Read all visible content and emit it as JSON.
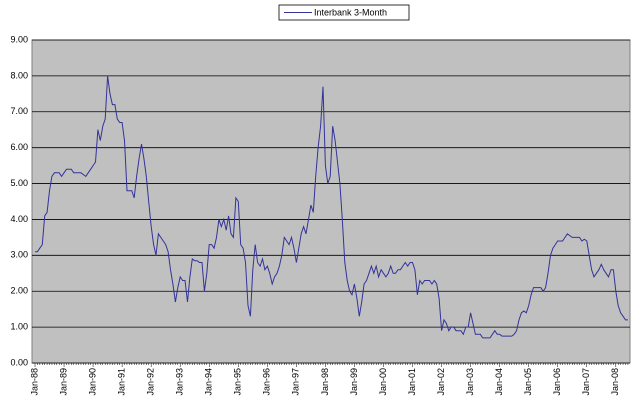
{
  "chart_data": {
    "type": "line",
    "categories": [
      "Jan-88",
      null,
      null,
      null,
      null,
      null,
      null,
      null,
      null,
      null,
      null,
      null,
      "Jan-89",
      null,
      null,
      null,
      null,
      null,
      null,
      null,
      null,
      null,
      null,
      null,
      "Jan-90",
      null,
      null,
      null,
      null,
      null,
      null,
      null,
      null,
      null,
      null,
      null,
      "Jan-91",
      null,
      null,
      null,
      null,
      null,
      null,
      null,
      null,
      null,
      null,
      null,
      "Jan-92",
      null,
      null,
      null,
      null,
      null,
      null,
      null,
      null,
      null,
      null,
      null,
      "Jan-93",
      null,
      null,
      null,
      null,
      null,
      null,
      null,
      null,
      null,
      null,
      null,
      "Jan-94",
      null,
      null,
      null,
      null,
      null,
      null,
      null,
      null,
      null,
      null,
      null,
      "Jan-95",
      null,
      null,
      null,
      null,
      null,
      null,
      null,
      null,
      null,
      null,
      null,
      "Jan-96",
      null,
      null,
      null,
      null,
      null,
      null,
      null,
      null,
      null,
      null,
      null,
      "Jan-97",
      null,
      null,
      null,
      null,
      null,
      null,
      null,
      null,
      null,
      null,
      null,
      "Jan-98",
      null,
      null,
      null,
      null,
      null,
      null,
      null,
      null,
      null,
      null,
      null,
      "Jan-99",
      null,
      null,
      null,
      null,
      null,
      null,
      null,
      null,
      null,
      null,
      null,
      "Jan-00",
      null,
      null,
      null,
      null,
      null,
      null,
      null,
      null,
      null,
      null,
      null,
      "Jan-01",
      null,
      null,
      null,
      null,
      null,
      null,
      null,
      null,
      null,
      null,
      null,
      "Jan-02",
      null,
      null,
      null,
      null,
      null,
      null,
      null,
      null,
      null,
      null,
      null,
      "Jan-03",
      null,
      null,
      null,
      null,
      null,
      null,
      null,
      null,
      null,
      null,
      null,
      "Jan-04",
      null,
      null,
      null,
      null,
      null,
      null,
      null,
      null,
      null,
      null,
      null,
      "Jan-05",
      null,
      null,
      null,
      null,
      null,
      null,
      null,
      null,
      null,
      null,
      null,
      "Jan-06",
      null,
      null,
      null,
      null,
      null,
      null,
      null,
      null,
      null,
      null,
      null,
      "Jan-07",
      null,
      null,
      null,
      null,
      null,
      null,
      null,
      null,
      null,
      null,
      null,
      "Jan-08",
      null,
      null,
      null,
      null,
      null
    ],
    "series": [
      {
        "name": "Interbank 3-Month",
        "color": "#333399",
        "values": [
          3.1,
          3.1,
          3.2,
          3.3,
          4.1,
          4.2,
          4.8,
          5.2,
          5.3,
          5.3,
          5.3,
          5.2,
          5.3,
          5.4,
          5.4,
          5.4,
          5.3,
          5.3,
          5.3,
          5.3,
          5.25,
          5.2,
          5.3,
          5.4,
          5.5,
          5.6,
          6.5,
          6.2,
          6.6,
          6.8,
          8.0,
          7.5,
          7.2,
          7.2,
          6.8,
          6.7,
          6.7,
          6.2,
          4.8,
          4.8,
          4.8,
          4.6,
          5.2,
          5.7,
          6.1,
          5.7,
          5.2,
          4.5,
          3.8,
          3.3,
          3.0,
          3.6,
          3.5,
          3.4,
          3.3,
          3.1,
          2.6,
          2.2,
          1.7,
          2.1,
          2.4,
          2.3,
          2.3,
          1.7,
          2.4,
          2.9,
          2.85,
          2.85,
          2.8,
          2.8,
          2.0,
          2.5,
          3.3,
          3.3,
          3.2,
          3.5,
          4.0,
          3.8,
          4.0,
          3.7,
          4.1,
          3.6,
          3.5,
          4.6,
          4.5,
          3.3,
          3.2,
          2.8,
          1.6,
          1.3,
          2.6,
          3.3,
          2.8,
          2.7,
          2.9,
          2.6,
          2.7,
          2.5,
          2.2,
          2.4,
          2.5,
          2.7,
          3.0,
          3.5,
          3.4,
          3.3,
          3.5,
          3.2,
          2.8,
          3.2,
          3.6,
          3.8,
          3.6,
          4.0,
          4.4,
          4.2,
          5.2,
          6.0,
          6.6,
          7.7,
          5.5,
          5.0,
          5.2,
          6.6,
          6.2,
          5.6,
          5.0,
          4.0,
          2.8,
          2.3,
          2.0,
          1.9,
          2.2,
          1.8,
          1.3,
          1.7,
          2.2,
          2.3,
          2.5,
          2.7,
          2.5,
          2.7,
          2.4,
          2.6,
          2.5,
          2.4,
          2.5,
          2.7,
          2.5,
          2.5,
          2.6,
          2.6,
          2.7,
          2.8,
          2.7,
          2.8,
          2.8,
          2.6,
          1.9,
          2.3,
          2.2,
          2.3,
          2.3,
          2.3,
          2.2,
          2.3,
          2.2,
          1.8,
          0.9,
          1.2,
          1.1,
          0.9,
          1.0,
          1.0,
          0.9,
          0.9,
          0.9,
          0.8,
          1.0,
          1.0,
          1.4,
          1.1,
          0.8,
          0.8,
          0.8,
          0.7,
          0.7,
          0.7,
          0.7,
          0.8,
          0.9,
          0.8,
          0.8,
          0.75,
          0.75,
          0.75,
          0.75,
          0.75,
          0.8,
          0.9,
          1.2,
          1.4,
          1.45,
          1.4,
          1.6,
          1.9,
          2.1,
          2.1,
          2.1,
          2.1,
          2.0,
          2.1,
          2.5,
          3.0,
          3.2,
          3.3,
          3.4,
          3.4,
          3.4,
          3.5,
          3.6,
          3.55,
          3.5,
          3.5,
          3.5,
          3.5,
          3.4,
          3.45,
          3.4,
          3.0,
          2.6,
          2.4,
          2.5,
          2.6,
          2.75,
          2.6,
          2.5,
          2.4,
          2.6,
          2.6,
          2.0,
          1.6,
          1.4,
          1.3,
          1.2,
          1.2
        ]
      }
    ],
    "ylim": [
      0,
      9
    ],
    "yticks": [
      {
        "value": 0,
        "label": "0.00"
      },
      {
        "value": 1,
        "label": "1.00"
      },
      {
        "value": 2,
        "label": "2.00"
      },
      {
        "value": 3,
        "label": "3.00"
      },
      {
        "value": 4,
        "label": "4.00"
      },
      {
        "value": 5,
        "label": "5.00"
      },
      {
        "value": 6,
        "label": "6.00"
      },
      {
        "value": 7,
        "label": "7.00"
      },
      {
        "value": 8,
        "label": "8.00"
      },
      {
        "value": 9,
        "label": "9.00"
      }
    ],
    "grid": true
  }
}
